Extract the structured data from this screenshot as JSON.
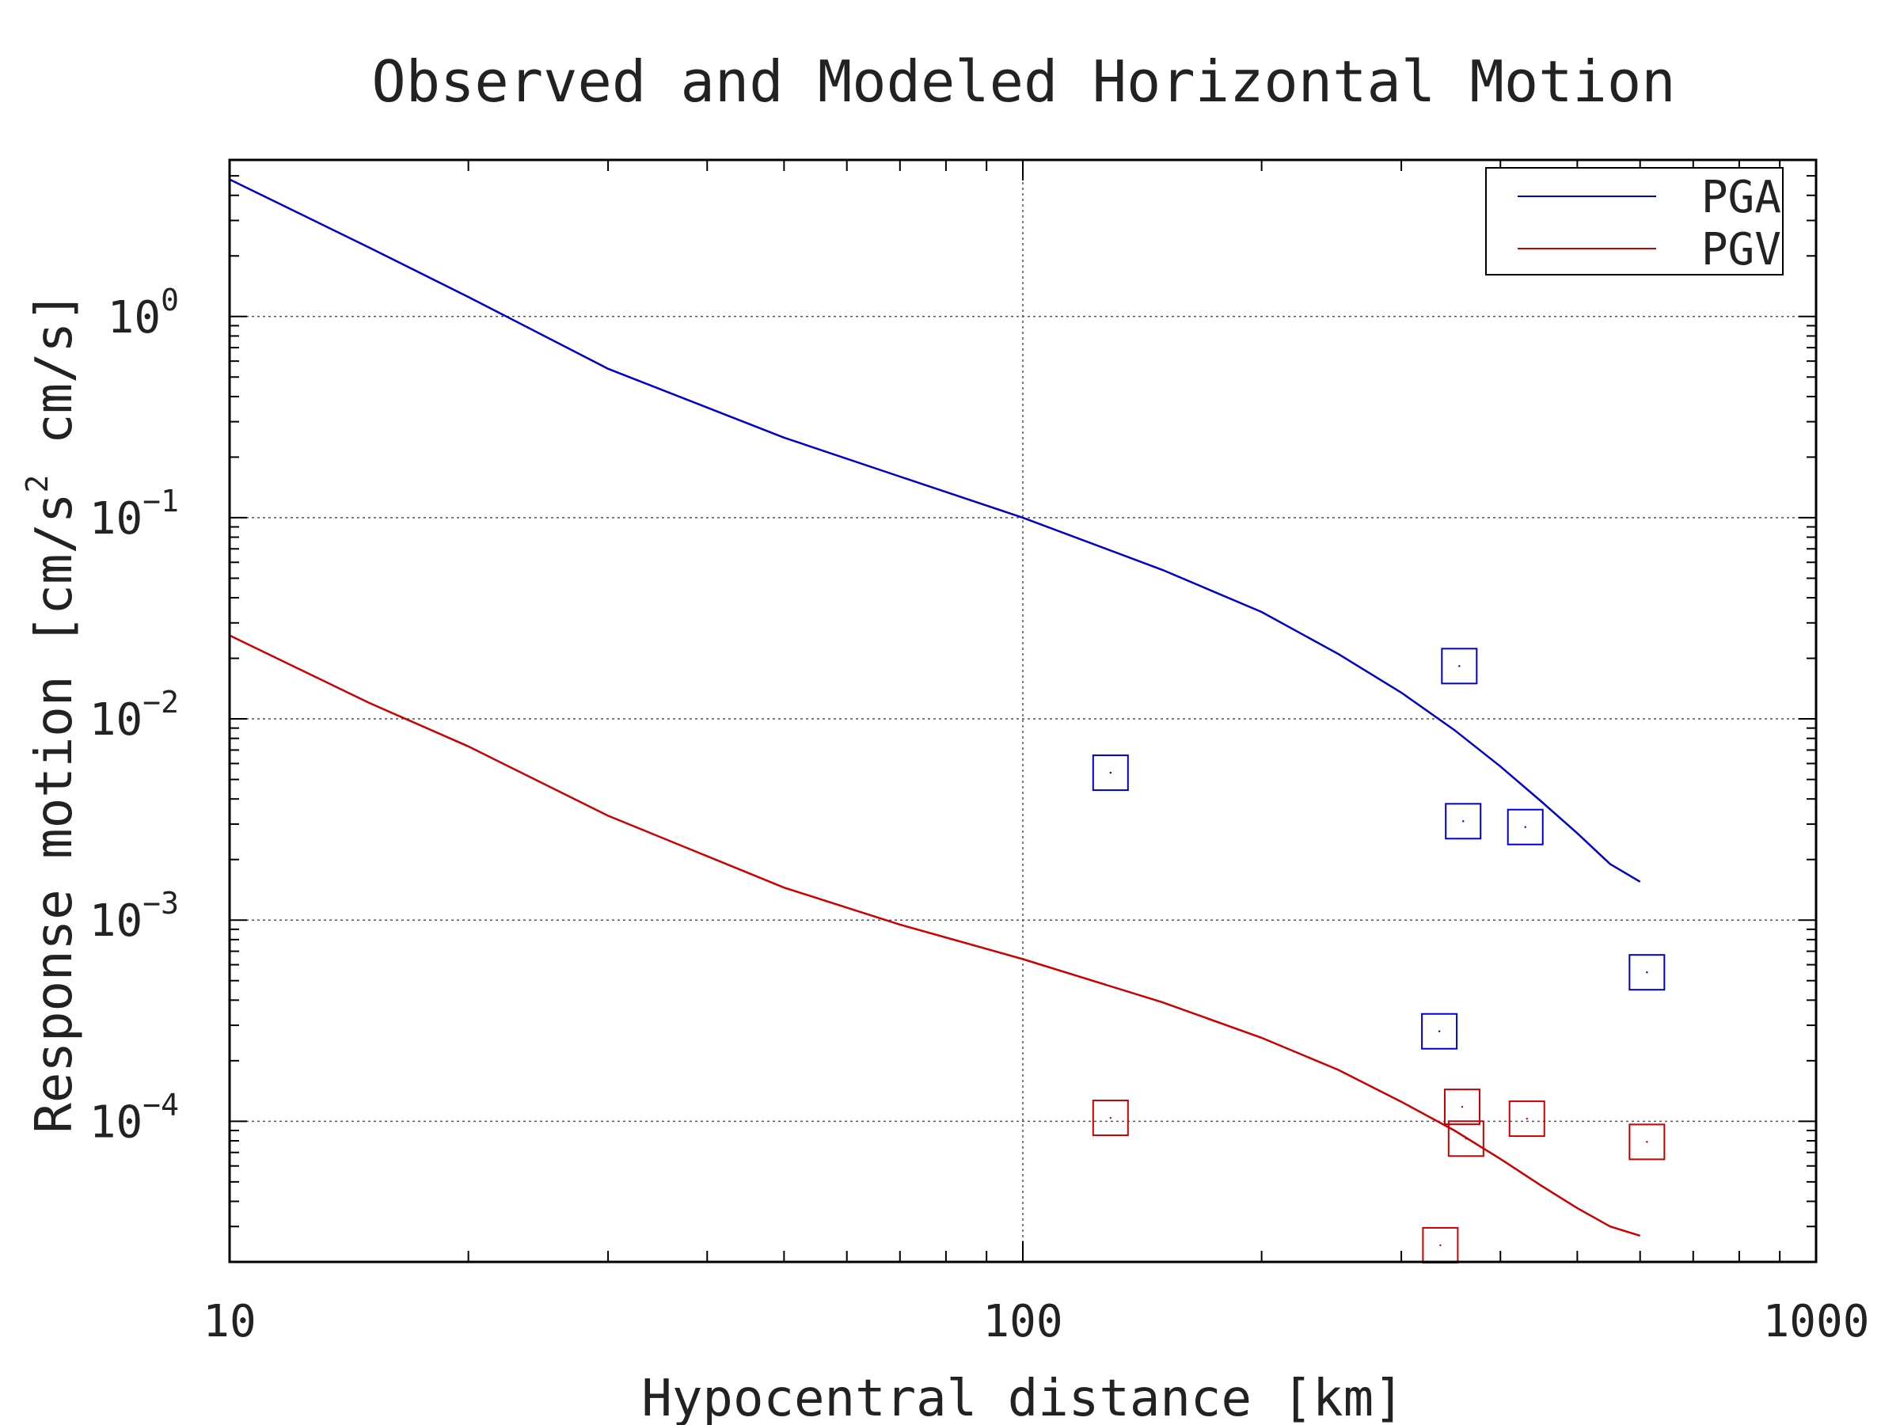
{
  "chart_data": {
    "type": "line",
    "title": "Observed and Modeled Horizontal Motion",
    "xlabel": "Hypocentral distance [km]",
    "ylabel_parts": {
      "prefix": "Response motion [cm/s",
      "sup": "2",
      "suffix": " cm/s]"
    },
    "x_scale": "log",
    "y_scale": "log",
    "xlim": [
      10,
      1000
    ],
    "ylim": [
      2e-05,
      6
    ],
    "grid": true,
    "legend_position": "top-right",
    "x_ticks": [
      {
        "value": 10,
        "label": "10"
      },
      {
        "value": 100,
        "label": "100"
      },
      {
        "value": 1000,
        "label": "1000"
      }
    ],
    "y_ticks": [
      {
        "value": 1,
        "base": "10",
        "exp": "0"
      },
      {
        "value": 0.1,
        "base": "10",
        "exp": "−1"
      },
      {
        "value": 0.01,
        "base": "10",
        "exp": "−2"
      },
      {
        "value": 0.001,
        "base": "10",
        "exp": "−3"
      },
      {
        "value": 0.0001,
        "base": "10",
        "exp": "−4"
      }
    ],
    "series": [
      {
        "name": "PGA",
        "color": "#0000cc",
        "x": [
          10,
          15,
          20,
          30,
          50,
          70,
          100,
          150,
          200,
          250,
          300,
          350,
          400,
          450,
          500,
          550,
          600
        ],
        "y": [
          4.8,
          2.2,
          1.25,
          0.55,
          0.25,
          0.16,
          0.1,
          0.055,
          0.034,
          0.021,
          0.0135,
          0.0088,
          0.0058,
          0.0039,
          0.0027,
          0.0019,
          0.00155
        ]
      },
      {
        "name": "PGV",
        "color": "#cc0000",
        "x": [
          10,
          15,
          20,
          30,
          50,
          70,
          100,
          150,
          200,
          250,
          300,
          350,
          400,
          450,
          500,
          550,
          600
        ],
        "y": [
          0.026,
          0.012,
          0.0073,
          0.0033,
          0.00145,
          0.00095,
          0.00064,
          0.00039,
          0.00026,
          0.00018,
          0.000125,
          9e-05,
          6.5e-05,
          4.8e-05,
          3.7e-05,
          3e-05,
          2.7e-05
        ]
      }
    ],
    "observed": [
      {
        "name": "PGA",
        "color": "#0000cc",
        "x": [
          129,
          355,
          359,
          430,
          612,
          335
        ],
        "y": [
          0.0054,
          0.0183,
          0.0031,
          0.0029,
          0.00055,
          0.00028
        ]
      },
      {
        "name": "PGV",
        "color": "#cc0000",
        "x": [
          129,
          358,
          362,
          432,
          612,
          336
        ],
        "y": [
          0.000104,
          0.000118,
          8.2e-05,
          0.000103,
          7.9e-05,
          2.42e-05
        ]
      }
    ]
  }
}
